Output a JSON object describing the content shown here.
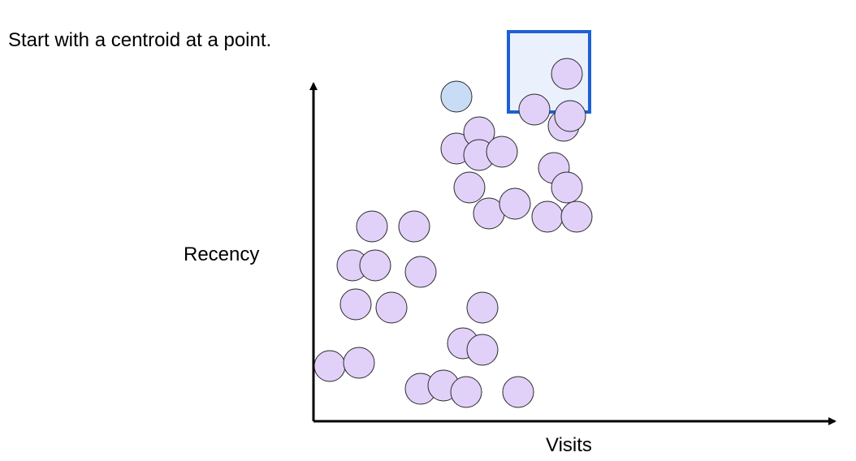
{
  "caption": "Start with a centroid at a point.",
  "chart_data": {
    "type": "scatter",
    "xlabel": "Visits",
    "ylabel": "Recency",
    "points": [
      {
        "x": 0.05,
        "y": 0.17
      },
      {
        "x": 0.14,
        "y": 0.18
      },
      {
        "x": 0.13,
        "y": 0.36
      },
      {
        "x": 0.12,
        "y": 0.48
      },
      {
        "x": 0.19,
        "y": 0.48
      },
      {
        "x": 0.18,
        "y": 0.6
      },
      {
        "x": 0.31,
        "y": 0.6
      },
      {
        "x": 0.24,
        "y": 0.35
      },
      {
        "x": 0.33,
        "y": 0.46
      },
      {
        "x": 0.33,
        "y": 0.1
      },
      {
        "x": 0.4,
        "y": 0.11
      },
      {
        "x": 0.47,
        "y": 0.09
      },
      {
        "x": 0.46,
        "y": 0.24
      },
      {
        "x": 0.52,
        "y": 0.22
      },
      {
        "x": 0.52,
        "y": 0.35
      },
      {
        "x": 0.63,
        "y": 0.09
      },
      {
        "x": 0.44,
        "y": 0.84
      },
      {
        "x": 0.51,
        "y": 0.89
      },
      {
        "x": 0.51,
        "y": 0.82
      },
      {
        "x": 0.58,
        "y": 0.83
      },
      {
        "x": 0.48,
        "y": 0.72
      },
      {
        "x": 0.54,
        "y": 0.64
      },
      {
        "x": 0.62,
        "y": 0.67
      },
      {
        "x": 0.68,
        "y": 0.96
      },
      {
        "x": 0.77,
        "y": 0.91
      },
      {
        "x": 0.74,
        "y": 0.78
      },
      {
        "x": 0.72,
        "y": 0.63
      },
      {
        "x": 0.79,
        "y": 0.94
      },
      {
        "x": 0.78,
        "y": 0.72
      },
      {
        "x": 0.81,
        "y": 0.63
      },
      {
        "x": 0.78,
        "y": 1.07
      }
    ],
    "centroid": {
      "x": 0.44,
      "y": 1.0
    },
    "colors": {
      "point_fill": "#e1d1f8",
      "point_stroke": "#2a2a2a",
      "centroid_fill": "#c9dcf6",
      "highlight_box_fill": "#eaf1fd",
      "highlight_box_stroke": "#1f5fd6",
      "axis": "#000000"
    }
  }
}
